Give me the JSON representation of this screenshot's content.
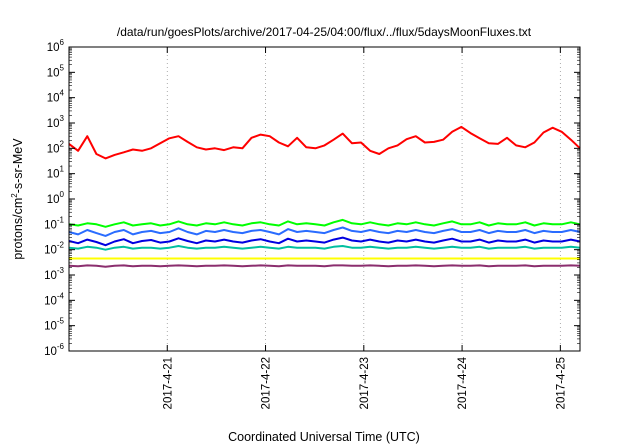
{
  "chart_data": {
    "type": "line",
    "title": "/data/run/goesPlots/archive/2017-04-25/04:00/flux/../flux/5daysMoonFluxes.txt",
    "xlabel": "Coordinated Universal Time (UTC)",
    "ylabel": "protons/cm2-s-sr-MeV",
    "ylabel_parts": {
      "pre": "protons/cm",
      "sup": "2",
      "post": "-s-sr-MeV"
    },
    "yscale": "log",
    "ylim": [
      1e-06,
      1000000.0
    ],
    "y_tick_exponents": [
      -6,
      -5,
      -4,
      -3,
      -2,
      -1,
      0,
      1,
      2,
      3,
      4,
      5,
      6
    ],
    "x_tick_labels": [
      "2017-4-21",
      "2017-4-22",
      "2017-4-23",
      "2017-4-24",
      "2017-4-25"
    ],
    "x_range_days": [
      20.0,
      25.2
    ],
    "x_tick_days": [
      21,
      22,
      23,
      24,
      25
    ],
    "grid": true,
    "series": [
      {
        "color": "#ff0000",
        "values": [
          150,
          80,
          300,
          60,
          40,
          55,
          70,
          90,
          80,
          100,
          160,
          250,
          300,
          180,
          110,
          90,
          100,
          85,
          110,
          100,
          260,
          350,
          300,
          170,
          120,
          260,
          110,
          100,
          130,
          220,
          380,
          160,
          170,
          80,
          60,
          100,
          130,
          230,
          300,
          170,
          180,
          220,
          450,
          700,
          400,
          250,
          160,
          150,
          260,
          130,
          110,
          170,
          420,
          650,
          450,
          220,
          100
        ]
      },
      {
        "color": "#00ff00",
        "values": [
          0.1,
          0.09,
          0.11,
          0.1,
          0.08,
          0.1,
          0.12,
          0.09,
          0.1,
          0.11,
          0.09,
          0.1,
          0.13,
          0.1,
          0.09,
          0.11,
          0.1,
          0.12,
          0.1,
          0.09,
          0.11,
          0.12,
          0.1,
          0.09,
          0.13,
          0.1,
          0.11,
          0.1,
          0.09,
          0.12,
          0.15,
          0.11,
          0.1,
          0.12,
          0.1,
          0.09,
          0.11,
          0.1,
          0.12,
          0.1,
          0.09,
          0.11,
          0.13,
          0.1,
          0.1,
          0.12,
          0.09,
          0.11,
          0.1,
          0.1,
          0.12,
          0.09,
          0.11,
          0.1,
          0.1,
          0.12,
          0.1
        ]
      },
      {
        "color": "#2a6cff",
        "values": [
          0.05,
          0.04,
          0.06,
          0.045,
          0.035,
          0.05,
          0.06,
          0.04,
          0.05,
          0.055,
          0.045,
          0.05,
          0.07,
          0.05,
          0.04,
          0.055,
          0.05,
          0.06,
          0.05,
          0.045,
          0.055,
          0.06,
          0.05,
          0.04,
          0.065,
          0.05,
          0.055,
          0.05,
          0.045,
          0.06,
          0.075,
          0.055,
          0.05,
          0.06,
          0.05,
          0.045,
          0.055,
          0.05,
          0.06,
          0.05,
          0.045,
          0.055,
          0.065,
          0.05,
          0.05,
          0.06,
          0.045,
          0.055,
          0.05,
          0.05,
          0.06,
          0.045,
          0.055,
          0.05,
          0.05,
          0.06,
          0.05
        ]
      },
      {
        "color": "#0000e0",
        "values": [
          0.022,
          0.018,
          0.025,
          0.02,
          0.015,
          0.021,
          0.026,
          0.018,
          0.022,
          0.024,
          0.019,
          0.021,
          0.028,
          0.022,
          0.018,
          0.023,
          0.021,
          0.025,
          0.021,
          0.019,
          0.023,
          0.026,
          0.021,
          0.018,
          0.027,
          0.021,
          0.023,
          0.021,
          0.019,
          0.025,
          0.03,
          0.023,
          0.021,
          0.025,
          0.021,
          0.019,
          0.023,
          0.021,
          0.025,
          0.021,
          0.019,
          0.023,
          0.027,
          0.021,
          0.021,
          0.025,
          0.019,
          0.023,
          0.021,
          0.021,
          0.025,
          0.019,
          0.023,
          0.021,
          0.021,
          0.025,
          0.021
        ]
      },
      {
        "color": "#00bfa0",
        "values": [
          0.012,
          0.011,
          0.013,
          0.012,
          0.01,
          0.012,
          0.013,
          0.011,
          0.012,
          0.012,
          0.011,
          0.012,
          0.014,
          0.012,
          0.011,
          0.012,
          0.012,
          0.013,
          0.012,
          0.011,
          0.012,
          0.013,
          0.012,
          0.011,
          0.013,
          0.012,
          0.012,
          0.012,
          0.011,
          0.013,
          0.014,
          0.012,
          0.012,
          0.013,
          0.012,
          0.011,
          0.012,
          0.012,
          0.013,
          0.012,
          0.011,
          0.012,
          0.013,
          0.012,
          0.012,
          0.013,
          0.011,
          0.012,
          0.012,
          0.012,
          0.013,
          0.011,
          0.012,
          0.012,
          0.012,
          0.013,
          0.012
        ]
      },
      {
        "color": "#ffff00",
        "values": [
          0.0045,
          0.0045,
          0.0045,
          0.0045,
          0.0045,
          0.0045,
          0.0045,
          0.0045,
          0.0045,
          0.0045,
          0.0045,
          0.0045,
          0.0045,
          0.0045,
          0.0045,
          0.0045,
          0.0045,
          0.0045,
          0.0045,
          0.0045,
          0.0045,
          0.0045,
          0.0045,
          0.0045,
          0.0045,
          0.0045,
          0.0045,
          0.0045,
          0.0045,
          0.0045,
          0.0045,
          0.0045,
          0.0045,
          0.0045,
          0.0045,
          0.0045,
          0.0045,
          0.0045,
          0.0045,
          0.0045,
          0.0045,
          0.0045,
          0.0045,
          0.0045,
          0.0045,
          0.0045,
          0.0045,
          0.0045,
          0.0045,
          0.0045,
          0.0045,
          0.0045,
          0.0045,
          0.0045,
          0.0045,
          0.0045,
          0.0045
        ]
      },
      {
        "color": "#8b2e6e",
        "values": [
          0.0023,
          0.0022,
          0.0024,
          0.0023,
          0.0021,
          0.0023,
          0.0024,
          0.0022,
          0.0023,
          0.0023,
          0.0022,
          0.0023,
          0.0024,
          0.0023,
          0.0022,
          0.0023,
          0.0023,
          0.0024,
          0.0023,
          0.0022,
          0.0023,
          0.0024,
          0.0023,
          0.0022,
          0.0024,
          0.0023,
          0.0023,
          0.0023,
          0.0022,
          0.0024,
          0.0024,
          0.0023,
          0.0023,
          0.0024,
          0.0023,
          0.0022,
          0.0023,
          0.0023,
          0.0024,
          0.0023,
          0.0022,
          0.0023,
          0.0024,
          0.0023,
          0.0023,
          0.0024,
          0.0022,
          0.0023,
          0.0023,
          0.0023,
          0.0024,
          0.0022,
          0.0023,
          0.0023,
          0.0023,
          0.0024,
          0.0023
        ]
      }
    ]
  }
}
